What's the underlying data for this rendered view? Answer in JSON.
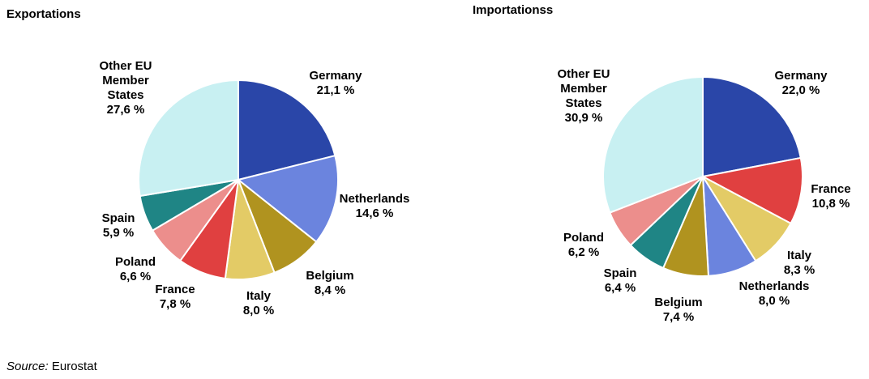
{
  "footer": {
    "source_label": "Source:",
    "source_value": " Eurostat"
  },
  "chart_data": [
    {
      "type": "pie",
      "title": "Exportations",
      "unit": "%",
      "slices": [
        {
          "name": [
            "Germany"
          ],
          "value": 21.1,
          "value_text": "21,1 %",
          "color": "#2a46a8"
        },
        {
          "name": [
            "Netherlands"
          ],
          "value": 14.6,
          "value_text": "14,6 %",
          "color": "#6b84de"
        },
        {
          "name": [
            "Belgium"
          ],
          "value": 8.4,
          "value_text": "8,4 %",
          "color": "#b0931f"
        },
        {
          "name": [
            "Italy"
          ],
          "value": 8.0,
          "value_text": "8,0 %",
          "color": "#e3cb66"
        },
        {
          "name": [
            "France"
          ],
          "value": 7.8,
          "value_text": "7,8 %",
          "color": "#e04040"
        },
        {
          "name": [
            "Poland"
          ],
          "value": 6.6,
          "value_text": "6,6 %",
          "color": "#ec8e8c"
        },
        {
          "name": [
            "Spain"
          ],
          "value": 5.9,
          "value_text": "5,9 %",
          "color": "#1f8585"
        },
        {
          "name": [
            "Other EU",
            "Member",
            "States"
          ],
          "value": 27.6,
          "value_text": "27,6 %",
          "color": "#c8f0f2"
        }
      ]
    },
    {
      "type": "pie",
      "title": "Importationss",
      "unit": "%",
      "slices": [
        {
          "name": [
            "Germany"
          ],
          "value": 22.0,
          "value_text": "22,0 %",
          "color": "#2a46a8"
        },
        {
          "name": [
            "France"
          ],
          "value": 10.8,
          "value_text": "10,8 %",
          "color": "#e04040"
        },
        {
          "name": [
            "Italy"
          ],
          "value": 8.3,
          "value_text": "8,3 %",
          "color": "#e3cb66"
        },
        {
          "name": [
            "Netherlands"
          ],
          "value": 8.0,
          "value_text": "8,0 %",
          "color": "#6b84de"
        },
        {
          "name": [
            "Belgium"
          ],
          "value": 7.4,
          "value_text": "7,4 %",
          "color": "#b0931f"
        },
        {
          "name": [
            "Spain"
          ],
          "value": 6.4,
          "value_text": "6,4 %",
          "color": "#1f8585"
        },
        {
          "name": [
            "Poland"
          ],
          "value": 6.2,
          "value_text": "6,2 %",
          "color": "#ec8e8c"
        },
        {
          "name": [
            "Other EU",
            "Member",
            "States"
          ],
          "value": 30.9,
          "value_text": "30,9 %",
          "color": "#c8f0f2"
        }
      ]
    }
  ]
}
